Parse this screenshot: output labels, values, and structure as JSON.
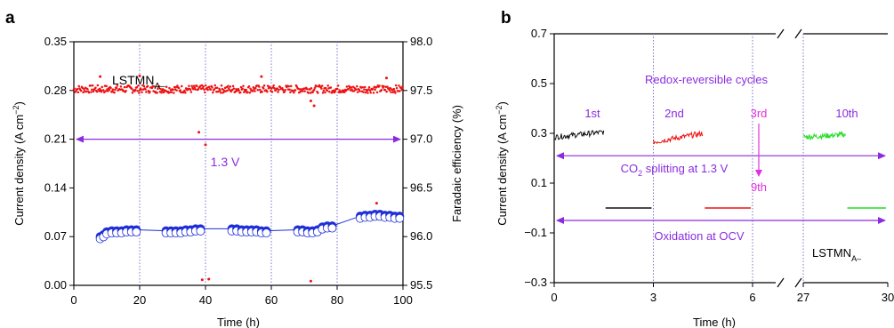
{
  "chart_data": [
    {
      "panel": "a",
      "type": "scatter",
      "xlabel": "Time (h)",
      "ylabel_left": "Current density (A cm−2)",
      "ylabel_right": "Faradaic efficiency (%)",
      "xlim": [
        0,
        100
      ],
      "ylim_left": [
        0,
        0.35
      ],
      "ylim_right": [
        95.5,
        98.0
      ],
      "xticks": [
        "0",
        "20",
        "40",
        "60",
        "80",
        "100"
      ],
      "yticks_left": [
        "0.00",
        "0.07",
        "0.14",
        "0.21",
        "0.28",
        "0.35"
      ],
      "yticks_right": [
        "95.5",
        "96.0",
        "96.5",
        "97.0",
        "97.5",
        "98.0"
      ],
      "vertical_gridlines_dotted": [
        20,
        40,
        60,
        80
      ],
      "sample_label": {
        "main": "LSTMN",
        "sub": "A–"
      },
      "voltage_label": "1.3 V",
      "voltage_arrow_y_left": 0.21,
      "series": [
        {
          "axis": "left",
          "color": "#ee1111",
          "marker": "dot",
          "baseline": 0.282,
          "x_range": [
            0,
            100
          ],
          "outliers": [
            [
              40,
              0.202
            ],
            [
              38,
              0.22
            ],
            [
              73,
              0.258
            ],
            [
              72,
              0.265
            ],
            [
              95,
              0.298
            ],
            [
              20,
              0.301
            ],
            [
              8,
              0.3
            ],
            [
              57,
              0.3
            ],
            [
              39,
              0.008
            ],
            [
              41,
              0.009
            ],
            [
              72,
              0.006
            ],
            [
              92,
              0.118
            ]
          ]
        },
        {
          "axis": "right",
          "color": "#1f2fd8",
          "marker": "circle",
          "points": [
            [
              8,
              96.0
            ],
            [
              9,
              96.02
            ],
            [
              10,
              96.05
            ],
            [
              11.5,
              96.06
            ],
            [
              13,
              96.06
            ],
            [
              14.5,
              96.06
            ],
            [
              16,
              96.07
            ],
            [
              17.5,
              96.07
            ],
            [
              19,
              96.07
            ],
            [
              28,
              96.06
            ],
            [
              29.5,
              96.06
            ],
            [
              31,
              96.06
            ],
            [
              32.5,
              96.06
            ],
            [
              34,
              96.07
            ],
            [
              35.5,
              96.07
            ],
            [
              37,
              96.08
            ],
            [
              38.5,
              96.08
            ],
            [
              48,
              96.08
            ],
            [
              49.5,
              96.08
            ],
            [
              51,
              96.07
            ],
            [
              52.5,
              96.07
            ],
            [
              54,
              96.07
            ],
            [
              55.5,
              96.07
            ],
            [
              57,
              96.06
            ],
            [
              58.5,
              96.06
            ],
            [
              68,
              96.07
            ],
            [
              69.5,
              96.07
            ],
            [
              71,
              96.06
            ],
            [
              72.5,
              96.06
            ],
            [
              74,
              96.07
            ],
            [
              75.5,
              96.1
            ],
            [
              77,
              96.11
            ],
            [
              78.5,
              96.11
            ],
            [
              87,
              96.21
            ],
            [
              88.5,
              96.22
            ],
            [
              90,
              96.22
            ],
            [
              91.5,
              96.23
            ],
            [
              93,
              96.23
            ],
            [
              94.5,
              96.22
            ],
            [
              96,
              96.22
            ],
            [
              97.5,
              96.21
            ],
            [
              99,
              96.21
            ]
          ]
        }
      ]
    },
    {
      "panel": "b",
      "type": "line",
      "xlabel": "Time (h)",
      "ylabel": "Current density (A cm−2)",
      "ylim": [
        -0.3,
        0.7
      ],
      "xticks": [
        "0",
        "3",
        "6",
        "27",
        "30"
      ],
      "yticks": [
        "−0.3",
        "−0.1",
        "0.1",
        "0.3",
        "0.5",
        "0.7"
      ],
      "axis_break": "between 6 and 27 h",
      "vertical_gridlines_dotted": [
        "3",
        "6",
        "27"
      ],
      "title_annotation": "Redox-reversible cycles",
      "cycle_labels_top": [
        "1st",
        "2nd",
        "3rd",
        "10th"
      ],
      "cycle_label_bottom": "9th",
      "co2_label": {
        "pre": "CO",
        "sub": "2",
        "post": " splitting at 1.3 V"
      },
      "co2_arrow_y": 0.21,
      "oxidation_label": "Oxidation at OCV",
      "oxidation_arrow_y": -0.05,
      "sample_label": {
        "main": "LSTMN",
        "sub": "A–"
      },
      "series": [
        {
          "name": "1st",
          "color": "#111111",
          "segment": "splitting",
          "x": [
            0,
            1.5
          ],
          "y_start": 0.285,
          "y_end": 0.305
        },
        {
          "name": "1st",
          "color": "#111111",
          "segment": "OCV",
          "x": [
            1.5,
            3.0
          ],
          "y_start": 0.0,
          "y_end": 0.0
        },
        {
          "name": "2nd",
          "color": "#ee1111",
          "segment": "splitting",
          "x": [
            3.0,
            4.5
          ],
          "y_start": 0.265,
          "y_end": 0.3
        },
        {
          "name": "2nd",
          "color": "#ee1111",
          "segment": "OCV",
          "x": [
            4.5,
            6.0
          ],
          "y_start": 0.0,
          "y_end": 0.0
        },
        {
          "name": "10th",
          "color": "#22dd22",
          "segment": "splitting",
          "x": [
            27.0,
            28.5
          ],
          "y_start": 0.285,
          "y_end": 0.295
        },
        {
          "name": "10th",
          "color": "#22dd22",
          "segment": "OCV",
          "x": [
            28.5,
            30.0
          ],
          "y_start": 0.0,
          "y_end": 0.0
        }
      ]
    }
  ],
  "panel_labels": {
    "a": "a",
    "b": "b"
  },
  "colors": {
    "annotation": "#8a2be2",
    "arrow": "#e030e0",
    "grid": "#7777cc"
  }
}
